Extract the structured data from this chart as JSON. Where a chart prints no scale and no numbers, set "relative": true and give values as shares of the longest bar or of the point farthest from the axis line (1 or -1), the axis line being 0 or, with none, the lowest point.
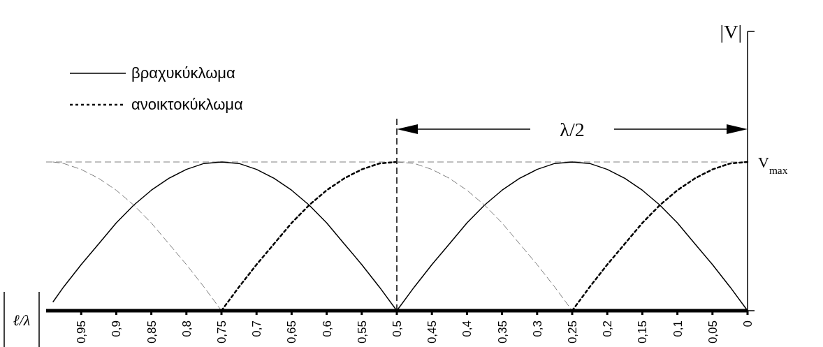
{
  "chart_data": {
    "type": "line",
    "relative": true,
    "xlabel": "ℓ/λ",
    "x": [
      0.99,
      0.975,
      0.95,
      0.925,
      0.9,
      0.875,
      0.85,
      0.825,
      0.8,
      0.775,
      0.75,
      0.725,
      0.7,
      0.675,
      0.65,
      0.625,
      0.6,
      0.575,
      0.55,
      0.525,
      0.5,
      0.475,
      0.45,
      0.425,
      0.4,
      0.375,
      0.35,
      0.325,
      0.3,
      0.275,
      0.25,
      0.225,
      0.2,
      0.175,
      0.15,
      0.125,
      0.1,
      0.075,
      0.05,
      0.025,
      0
    ],
    "xlim": [
      1,
      0
    ],
    "xticks": [
      {
        "value": 0.95,
        "label": "0,95"
      },
      {
        "value": 0.9,
        "label": "0,9"
      },
      {
        "value": 0.85,
        "label": "0,85"
      },
      {
        "value": 0.8,
        "label": "0,8"
      },
      {
        "value": 0.75,
        "label": "0,75"
      },
      {
        "value": 0.7,
        "label": "0,7"
      },
      {
        "value": 0.65,
        "label": "0,65"
      },
      {
        "value": 0.6,
        "label": "0,6"
      },
      {
        "value": 0.55,
        "label": "0,55"
      },
      {
        "value": 0.5,
        "label": "0,5"
      },
      {
        "value": 0.45,
        "label": "0,45"
      },
      {
        "value": 0.4,
        "label": "0,4"
      },
      {
        "value": 0.35,
        "label": "0,35"
      },
      {
        "value": 0.3,
        "label": "0,3"
      },
      {
        "value": 0.25,
        "label": "0,25"
      },
      {
        "value": 0.2,
        "label": "0,2"
      },
      {
        "value": 0.15,
        "label": "0,15"
      },
      {
        "value": 0.1,
        "label": "0,1"
      },
      {
        "value": 0.05,
        "label": "0,05"
      },
      0
    ],
    "tick_labels": "x",
    "legend": "top left",
    "series": [
      {
        "name": "βραχυκύκλωμα",
        "color": "#000000",
        "line_style": "solid",
        "values": [
          0.06,
          0.16,
          0.31,
          0.45,
          0.59,
          0.71,
          0.81,
          0.89,
          0.95,
          0.99,
          1,
          0.99,
          0.95,
          0.89,
          0.81,
          0.71,
          0.59,
          0.45,
          0.31,
          0.16,
          0,
          0.16,
          0.31,
          0.45,
          0.59,
          0.71,
          0.81,
          0.89,
          0.95,
          0.99,
          1,
          0.99,
          0.95,
          0.89,
          0.81,
          0.71,
          0.59,
          0.45,
          0.31,
          0.16,
          0
        ]
      },
      {
        "name": "ανοικτοκύκλωμα",
        "color": "#000000",
        "line_style": "dotted",
        "values": [
          null,
          null,
          null,
          null,
          null,
          null,
          null,
          null,
          null,
          null,
          0,
          0.16,
          0.31,
          0.45,
          0.59,
          0.71,
          0.81,
          0.89,
          0.95,
          0.99,
          1,
          null,
          null,
          null,
          null,
          null,
          null,
          null,
          null,
          null,
          0,
          0.16,
          0.31,
          0.45,
          0.59,
          0.71,
          0.81,
          0.89,
          0.95,
          0.99,
          1
        ]
      },
      {
        "color": "#808080",
        "line_style": "dashed",
        "values": [
          1,
          0.99,
          0.95,
          0.89,
          0.81,
          0.71,
          0.59,
          0.45,
          0.31,
          0.16,
          0,
          null,
          null,
          null,
          null,
          null,
          null,
          null,
          null,
          null,
          1,
          0.99,
          0.95,
          0.89,
          0.81,
          0.71,
          0.59,
          0.45,
          0.31,
          0.16,
          0,
          null,
          null,
          null,
          null,
          null,
          null,
          null,
          null,
          null,
          null
        ]
      }
    ],
    "ref_lines": [
      {
        "axis": "y",
        "value": 1,
        "label": "V$_{max}$",
        "color": "#808080",
        "line_style": "dashed"
      },
      {
        "axis": "x",
        "value": 0.5,
        "color": "#000000",
        "line_style": "dashed"
      }
    ],
    "annotations": [
      "λ/2",
      "|V|"
    ]
  }
}
